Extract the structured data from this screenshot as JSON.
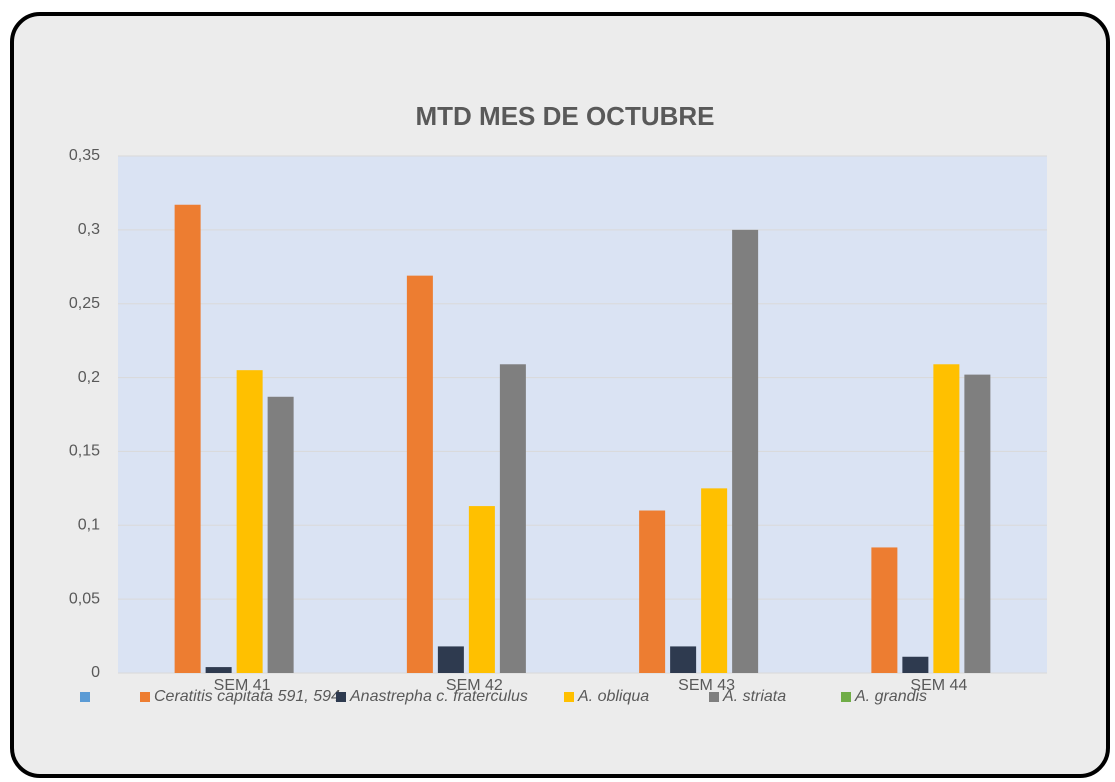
{
  "chart_data": {
    "type": "bar",
    "title": "MTD MES DE OCTUBRE",
    "categories": [
      "SEM 41",
      "SEM 42",
      "SEM 43",
      "SEM 44"
    ],
    "series": [
      {
        "name": null,
        "color": "#5b9bd5",
        "values": [
          null,
          null,
          null,
          null
        ]
      },
      {
        "name": "Ceratitis capitata 591, 594",
        "color": "#ed7d31",
        "values": [
          0.317,
          0.269,
          0.11,
          0.085
        ]
      },
      {
        "name": "Anastrepha c. fraterculus",
        "color": "#2e3a4f",
        "values": [
          0.004,
          0.018,
          0.018,
          0.011
        ]
      },
      {
        "name": "A. obliqua",
        "color": "#ffc000",
        "values": [
          0.205,
          0.113,
          0.125,
          0.209
        ]
      },
      {
        "name": "A. striata",
        "color": "#7f7f7f",
        "values": [
          0.187,
          0.209,
          0.3,
          0.202
        ]
      },
      {
        "name": "A. grandis",
        "color": "#70ad47",
        "values": [
          0,
          0,
          0,
          0
        ]
      }
    ],
    "ylim": [
      0,
      0.35
    ],
    "yticks": [
      0,
      {
        "value": 0.05,
        "label": "0,05"
      },
      {
        "value": 0.1,
        "label": "0,1"
      },
      {
        "value": 0.15,
        "label": "0,15"
      },
      {
        "value": 0.2,
        "label": "0,2"
      },
      {
        "value": 0.25,
        "label": "0,25"
      },
      {
        "value": 0.3,
        "label": "0,3"
      },
      {
        "value": 0.35,
        "label": "0,35"
      }
    ],
    "grid": true,
    "legend": "bottom"
  }
}
